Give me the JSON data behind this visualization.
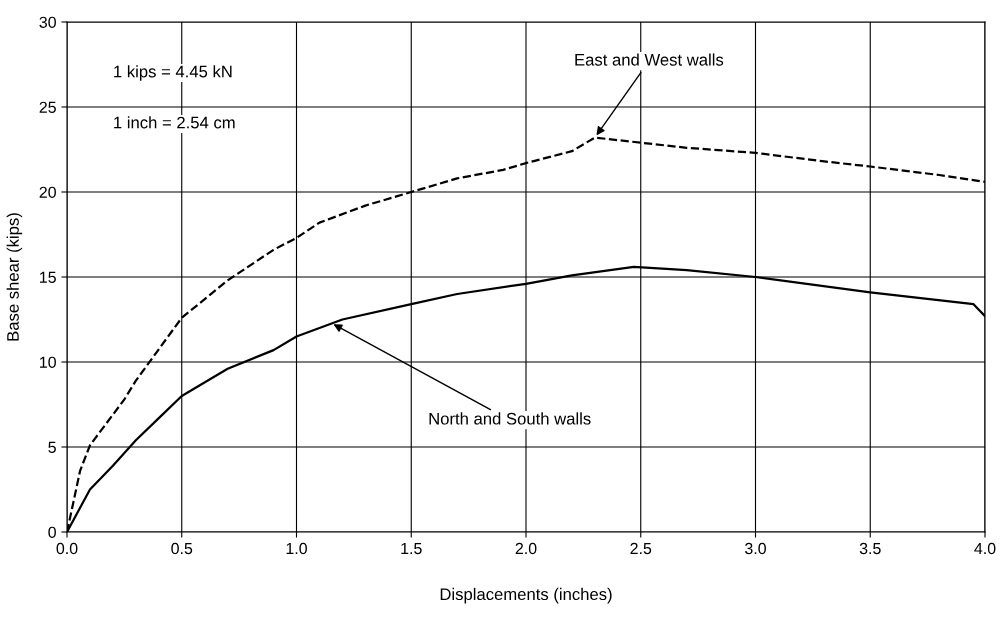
{
  "chart_data": {
    "type": "line",
    "xlabel": "Displacements (inches)",
    "ylabel": "Base shear (kips)",
    "xlim": [
      0,
      4
    ],
    "xticks": [
      {
        "value": 0,
        "label": "0.0"
      },
      0.5,
      {
        "value": 1,
        "label": "1.0"
      },
      1.5,
      {
        "value": 2,
        "label": "2.0"
      },
      2.5,
      {
        "value": 3,
        "label": "3.0"
      },
      3.5,
      {
        "value": 4,
        "label": "4.0"
      }
    ],
    "ylim": [
      0,
      30
    ],
    "yticks": [
      0,
      5,
      10,
      15,
      20,
      25,
      30
    ],
    "grid": true,
    "legend": false,
    "marker": "none",
    "series": [
      {
        "color": "#000000",
        "line_style": "dashed",
        "x": [
          0,
          0.057,
          0.1,
          0.25,
          0.3,
          0.5,
          0.7,
          0.9,
          1.0,
          1.1,
          1.3,
          1.5,
          1.7,
          1.9,
          2.0,
          2.2,
          2.3,
          2.5,
          2.7,
          3.0,
          3.3,
          3.5,
          3.8,
          4.0
        ],
        "values": [
          0,
          3.6,
          5.1,
          7.8,
          8.9,
          12.6,
          14.8,
          16.6,
          17.3,
          18.2,
          19.2,
          20.0,
          20.8,
          21.3,
          21.7,
          22.4,
          23.2,
          22.9,
          22.6,
          22.3,
          21.8,
          21.5,
          21.0,
          20.6
        ]
      },
      {
        "color": "#000000",
        "line_style": "solid",
        "x": [
          0,
          0.1,
          0.2,
          0.3,
          0.4,
          0.5,
          0.7,
          0.9,
          1.0,
          1.2,
          1.5,
          1.7,
          2.0,
          2.2,
          2.47,
          2.7,
          3.0,
          3.5,
          3.95,
          4.0
        ],
        "values": [
          0,
          2.5,
          3.9,
          5.4,
          6.7,
          8.0,
          9.6,
          10.7,
          11.5,
          12.5,
          13.4,
          14.0,
          14.6,
          15.1,
          15.6,
          15.4,
          15.0,
          14.1,
          13.4,
          12.7
        ]
      }
    ],
    "annotations": [
      {
        "text": "East and West walls",
        "x": 2.3,
        "y": 23.2
      },
      {
        "text": "North and South walls",
        "x": 1.15,
        "y": 12.3
      },
      "1 kips = 4.45 kN",
      "1 inch = 2.54 cm"
    ]
  }
}
